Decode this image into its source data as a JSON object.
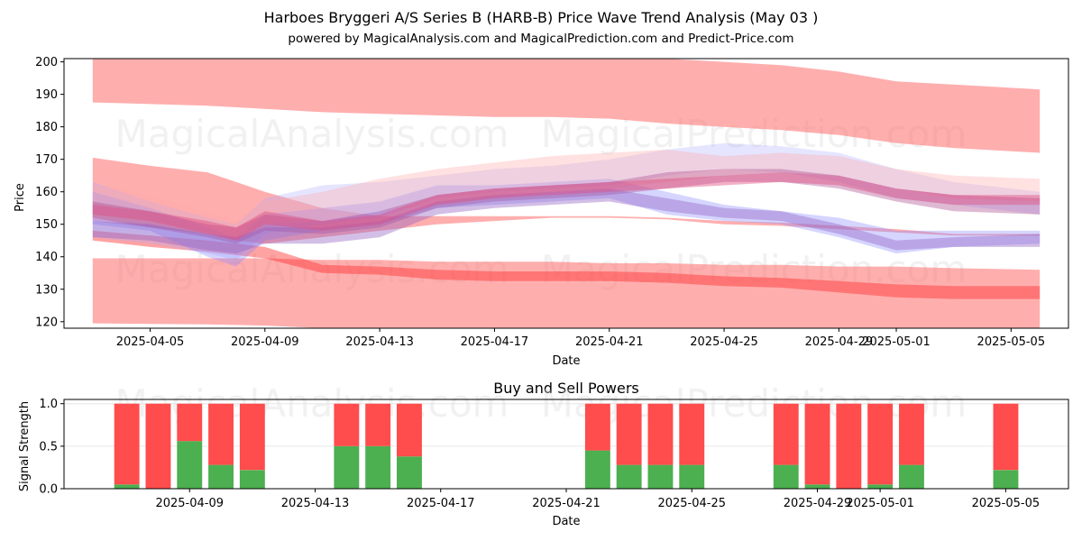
{
  "chart_data": [
    {
      "type": "area",
      "title": "Harboes Bryggeri A/S Series B (HARB-B) Price Wave Trend Analysis (May 03 )",
      "subtitle": "powered by MagicalAnalysis.com and MagicalPrediction.com and Predict-Price.com",
      "xlabel": "Date",
      "ylabel": "Price",
      "xlim": [
        "2025-04-02",
        "2025-05-07"
      ],
      "ylim": [
        118,
        201
      ],
      "x_ticks": [
        "2025-04-05",
        "2025-04-09",
        "2025-04-13",
        "2025-04-17",
        "2025-04-21",
        "2025-04-25",
        "2025-04-29",
        "2025-05-01",
        "2025-05-05"
      ],
      "y_ticks": [
        120,
        130,
        140,
        150,
        160,
        170,
        180,
        190,
        200
      ],
      "watermarks": [
        "MagicalAnalysis.com",
        "MagicalPrediction.com"
      ],
      "x": [
        "2025-04-03",
        "2025-04-05",
        "2025-04-07",
        "2025-04-08",
        "2025-04-09",
        "2025-04-11",
        "2025-04-13",
        "2025-04-15",
        "2025-04-17",
        "2025-04-19",
        "2025-04-21",
        "2025-04-23",
        "2025-04-25",
        "2025-04-27",
        "2025-04-29",
        "2025-05-01",
        "2025-05-03",
        "2025-05-06"
      ],
      "bands": [
        {
          "color": "#ff6b6b",
          "opacity": 0.55,
          "lower": [
            187.5,
            187,
            186.5,
            186,
            185.5,
            184.5,
            184,
            183.5,
            183,
            183,
            182.5,
            181,
            180,
            179,
            177.5,
            175,
            173.5,
            172
          ],
          "upper": [
            201,
            201,
            201,
            201,
            201,
            201,
            201,
            201,
            201,
            201,
            201,
            201,
            200,
            199,
            197,
            194,
            193,
            191.5
          ]
        },
        {
          "color": "#ff6b6b",
          "opacity": 0.55,
          "lower": [
            151,
            149,
            147,
            145,
            144,
            146,
            148,
            150,
            151,
            152,
            152,
            151.5,
            150,
            149.5,
            148.5,
            147.5,
            146.5,
            146.5
          ],
          "upper": [
            170.5,
            168,
            166,
            163,
            160,
            155,
            152.5,
            152.5,
            152.5,
            152.5,
            152.5,
            152,
            151,
            150.5,
            149.5,
            148.5,
            147,
            147
          ]
        },
        {
          "color": "#ff6b6b",
          "opacity": 0.55,
          "lower": [
            119.5,
            119.3,
            119.2,
            119,
            118.8,
            118,
            118,
            118,
            118,
            118,
            118,
            118,
            118,
            118,
            118,
            118,
            118,
            118
          ],
          "upper": [
            139.5,
            139.5,
            139.5,
            139.5,
            139.5,
            139,
            139,
            138.5,
            138.5,
            138.5,
            138,
            138,
            137.5,
            137.5,
            137,
            137,
            136.5,
            136
          ]
        },
        {
          "color": "#ff3030",
          "opacity": 0.45,
          "lower": [
            145,
            143,
            141.5,
            140.5,
            139.5,
            135,
            134.5,
            133,
            132.5,
            132.5,
            132.5,
            132,
            131,
            130.5,
            129,
            127.5,
            127,
            127
          ],
          "upper": [
            148,
            146.5,
            145,
            144,
            143,
            137.5,
            137,
            136,
            135.5,
            135.5,
            135.5,
            135,
            134,
            133.5,
            132.5,
            131.5,
            131,
            131
          ]
        },
        {
          "color": "#aaaaff",
          "opacity": 0.3,
          "lower": [
            146,
            144,
            141,
            139,
            147,
            150,
            152,
            158,
            160,
            161,
            162,
            165,
            167,
            166,
            163,
            158,
            156,
            153
          ],
          "upper": [
            163,
            157,
            152,
            150,
            158,
            162,
            163,
            165,
            167,
            168,
            170,
            173,
            175,
            174,
            172,
            167,
            163,
            160
          ]
        },
        {
          "color": "#8888ff",
          "opacity": 0.35,
          "lower": [
            150,
            148,
            140,
            137,
            145,
            148,
            150,
            155,
            156,
            157,
            158,
            153,
            151,
            150,
            146,
            141,
            143,
            144
          ],
          "upper": [
            160,
            155,
            149,
            146,
            153,
            155,
            157,
            162,
            162,
            163,
            164,
            160,
            156,
            154,
            152,
            148,
            148,
            148
          ]
        },
        {
          "color": "#ffaaaa",
          "opacity": 0.35,
          "lower": [
            152,
            150,
            147,
            145,
            150,
            151,
            154,
            156,
            158,
            160,
            161,
            163,
            165,
            166,
            165,
            161,
            158,
            157
          ],
          "upper": [
            162,
            159,
            154,
            151,
            157,
            160,
            164,
            167,
            169,
            171,
            172,
            173,
            171,
            172,
            171,
            167,
            165,
            164
          ]
        },
        {
          "color": "#b05090",
          "opacity": 0.4,
          "lower": [
            152,
            149,
            146,
            144,
            148,
            147,
            149,
            155,
            157,
            158,
            159,
            161,
            163,
            163,
            161,
            157,
            154,
            153
          ],
          "upper": [
            157,
            154,
            150,
            149,
            153,
            151,
            154,
            159,
            161,
            162,
            163,
            166,
            167,
            167,
            165,
            161,
            159,
            158
          ]
        },
        {
          "color": "#9060c0",
          "opacity": 0.4,
          "lower": [
            146,
            145,
            142,
            141,
            144,
            144,
            146,
            153,
            155,
            156,
            157,
            154,
            152,
            151,
            147,
            142,
            143,
            143
          ],
          "upper": [
            151,
            150,
            147,
            146,
            149,
            149,
            151,
            157,
            159,
            160,
            161,
            158,
            155,
            154,
            150,
            145,
            146,
            147
          ]
        },
        {
          "color": "#e05080",
          "opacity": 0.45,
          "lower": [
            153,
            151,
            147,
            145,
            150,
            148,
            150,
            156,
            158,
            159,
            160,
            161,
            162,
            163,
            162,
            158,
            156,
            156
          ],
          "upper": [
            156,
            154,
            151,
            149,
            154,
            151,
            153,
            159,
            161,
            162,
            163,
            164,
            165,
            166,
            165,
            161,
            159,
            159
          ]
        }
      ]
    },
    {
      "type": "bar",
      "title": "Buy and Sell Powers",
      "xlabel": "Date",
      "ylabel": "Signal Strength",
      "xlim": [
        "2025-04-05.0",
        "2025-05-07.0"
      ],
      "ylim": [
        0,
        1.05
      ],
      "x_ticks": [
        "2025-04-09",
        "2025-04-13",
        "2025-04-17",
        "2025-04-21",
        "2025-04-25",
        "2025-04-29",
        "2025-05-01",
        "2025-05-05"
      ],
      "y_ticks": [
        "0.0",
        "0.5",
        "1.0"
      ],
      "categories": [
        "2025-04-07",
        "2025-04-08",
        "2025-04-09",
        "2025-04-10",
        "2025-04-11",
        "2025-04-14",
        "2025-04-15",
        "2025-04-16",
        "2025-04-22",
        "2025-04-23",
        "2025-04-24",
        "2025-04-25",
        "2025-04-28",
        "2025-04-29",
        "2025-04-30",
        "2025-05-01",
        "2025-05-02",
        "2025-05-05"
      ],
      "series": [
        {
          "color": "#4caf50",
          "values": [
            0.05,
            0,
            0.56,
            0.28,
            0.22,
            0.5,
            0.5,
            0.38,
            0.45,
            0.28,
            0.28,
            0.28,
            0.28,
            0.05,
            0,
            0.05,
            0.28,
            0.22
          ]
        },
        {
          "color": "#ff4c4c",
          "values": [
            0.95,
            1,
            0.44,
            0.72,
            0.78,
            0.5,
            0.5,
            0.62,
            0.55,
            0.72,
            0.72,
            0.72,
            0.72,
            0.95,
            1,
            0.95,
            0.72,
            0.78
          ]
        }
      ]
    }
  ]
}
